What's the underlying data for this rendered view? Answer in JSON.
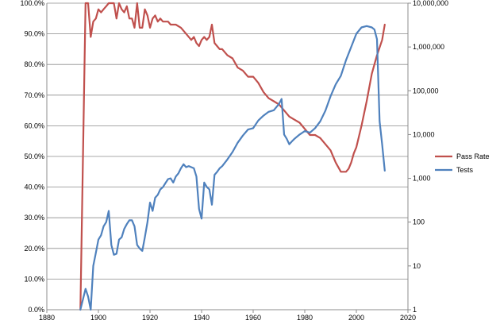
{
  "chart_data": {
    "type": "line",
    "title": "",
    "xlabel": "",
    "ylabel": "",
    "xlim": [
      1880,
      2020
    ],
    "x_ticks": [
      1880,
      1900,
      1920,
      1940,
      1960,
      1980,
      2000,
      2020
    ],
    "x_tick_labels": [
      "1880",
      "1900",
      "1920",
      "1940",
      "1960",
      "1980",
      "2000",
      "2020"
    ],
    "y_left": {
      "lim": [
        0,
        100
      ],
      "ticks": [
        0,
        10,
        20,
        30,
        40,
        50,
        60,
        70,
        80,
        90,
        100
      ],
      "tick_labels": [
        "0.0%",
        "10.0%",
        "20.0%",
        "30.0%",
        "40.0%",
        "50.0%",
        "60.0%",
        "70.0%",
        "80.0%",
        "90.0%",
        "100.0%"
      ]
    },
    "y_right": {
      "scale": "log",
      "lim": [
        1,
        10000000
      ],
      "ticks": [
        1,
        10,
        100,
        1000,
        10000,
        100000,
        1000000,
        10000000
      ],
      "tick_labels": [
        "1",
        "10",
        "100",
        "1,000",
        "10,000",
        "100,000",
        "1,000,000",
        "10,000,000"
      ]
    },
    "grid": true,
    "legend": {
      "placement": "right",
      "entries": [
        "Pass Rate",
        "Tests"
      ]
    },
    "series": [
      {
        "name": "Pass Rate",
        "axis": "left",
        "color": "#c0504d",
        "x": [
          1893,
          1895,
          1896,
          1897,
          1898,
          1899,
          1900,
          1901,
          1902,
          1903,
          1904,
          1905,
          1906,
          1907,
          1908,
          1909,
          1910,
          1911,
          1912,
          1913,
          1914,
          1915,
          1916,
          1917,
          1918,
          1919,
          1920,
          1921,
          1922,
          1923,
          1924,
          1925,
          1926,
          1927,
          1928,
          1929,
          1930,
          1932,
          1934,
          1936,
          1937,
          1938,
          1939,
          1940,
          1941,
          1942,
          1943,
          1944,
          1945,
          1946,
          1947,
          1948,
          1950,
          1952,
          1954,
          1956,
          1958,
          1960,
          1962,
          1964,
          1966,
          1968,
          1970,
          1972,
          1974,
          1976,
          1978,
          1980,
          1982,
          1984,
          1986,
          1988,
          1990,
          1992,
          1994,
          1996,
          1997,
          1998,
          1999,
          2000,
          2002,
          2004,
          2006,
          2008,
          2010,
          2011
        ],
        "values": [
          0,
          100,
          100,
          89,
          94,
          95,
          98,
          97,
          98,
          99,
          100,
          100,
          100,
          95,
          100,
          98,
          97,
          99,
          95,
          95,
          92,
          100,
          92,
          92,
          98,
          96,
          92,
          95,
          96,
          94,
          95,
          94,
          94,
          94,
          93,
          93,
          93,
          92,
          90,
          88,
          89,
          87,
          86,
          88,
          89,
          88,
          89,
          93,
          87,
          86,
          85,
          85,
          83,
          82,
          79,
          78,
          76,
          76,
          74,
          71,
          69,
          68,
          67,
          65,
          63,
          62,
          61,
          59,
          57,
          57,
          56,
          54,
          52,
          48,
          45,
          45,
          46,
          48,
          51,
          53,
          60,
          68,
          77,
          83,
          88,
          93
        ]
      },
      {
        "name": "Tests",
        "axis": "right",
        "color": "#4f81bd",
        "x": [
          1893,
          1895,
          1896,
          1897,
          1898,
          1899,
          1900,
          1901,
          1902,
          1903,
          1904,
          1905,
          1906,
          1907,
          1908,
          1909,
          1910,
          1911,
          1912,
          1913,
          1914,
          1915,
          1916,
          1917,
          1918,
          1919,
          1920,
          1921,
          1922,
          1923,
          1924,
          1925,
          1926,
          1927,
          1928,
          1929,
          1930,
          1931,
          1932,
          1933,
          1934,
          1935,
          1936,
          1937,
          1938,
          1939,
          1940,
          1941,
          1942,
          1943,
          1944,
          1945,
          1946,
          1947,
          1948,
          1950,
          1952,
          1954,
          1956,
          1958,
          1960,
          1962,
          1964,
          1966,
          1968,
          1970,
          1971,
          1972,
          1973,
          1974,
          1975,
          1976,
          1978,
          1980,
          1982,
          1984,
          1986,
          1988,
          1990,
          1992,
          1994,
          1996,
          1998,
          2000,
          2002,
          2004,
          2006,
          2007,
          2008,
          2009,
          2010,
          2011
        ],
        "values": [
          1,
          3,
          2,
          1,
          10,
          20,
          40,
          50,
          80,
          100,
          180,
          30,
          18,
          19,
          40,
          45,
          70,
          90,
          110,
          110,
          80,
          30,
          25,
          22,
          45,
          100,
          280,
          180,
          360,
          420,
          560,
          630,
          780,
          960,
          1000,
          800,
          1100,
          1300,
          1700,
          2100,
          1800,
          1900,
          1800,
          1700,
          1100,
          200,
          120,
          800,
          640,
          560,
          250,
          1200,
          1400,
          1700,
          1900,
          2700,
          4000,
          6500,
          9500,
          13000,
          14000,
          21000,
          27000,
          33000,
          36000,
          50000,
          65000,
          10000,
          8000,
          6000,
          7000,
          8000,
          10000,
          12000,
          11000,
          14000,
          20000,
          35000,
          75000,
          140000,
          220000,
          500000,
          1000000,
          2000000,
          2800000,
          3000000,
          2800000,
          2500000,
          1500000,
          20000,
          6000,
          1500
        ]
      }
    ]
  }
}
